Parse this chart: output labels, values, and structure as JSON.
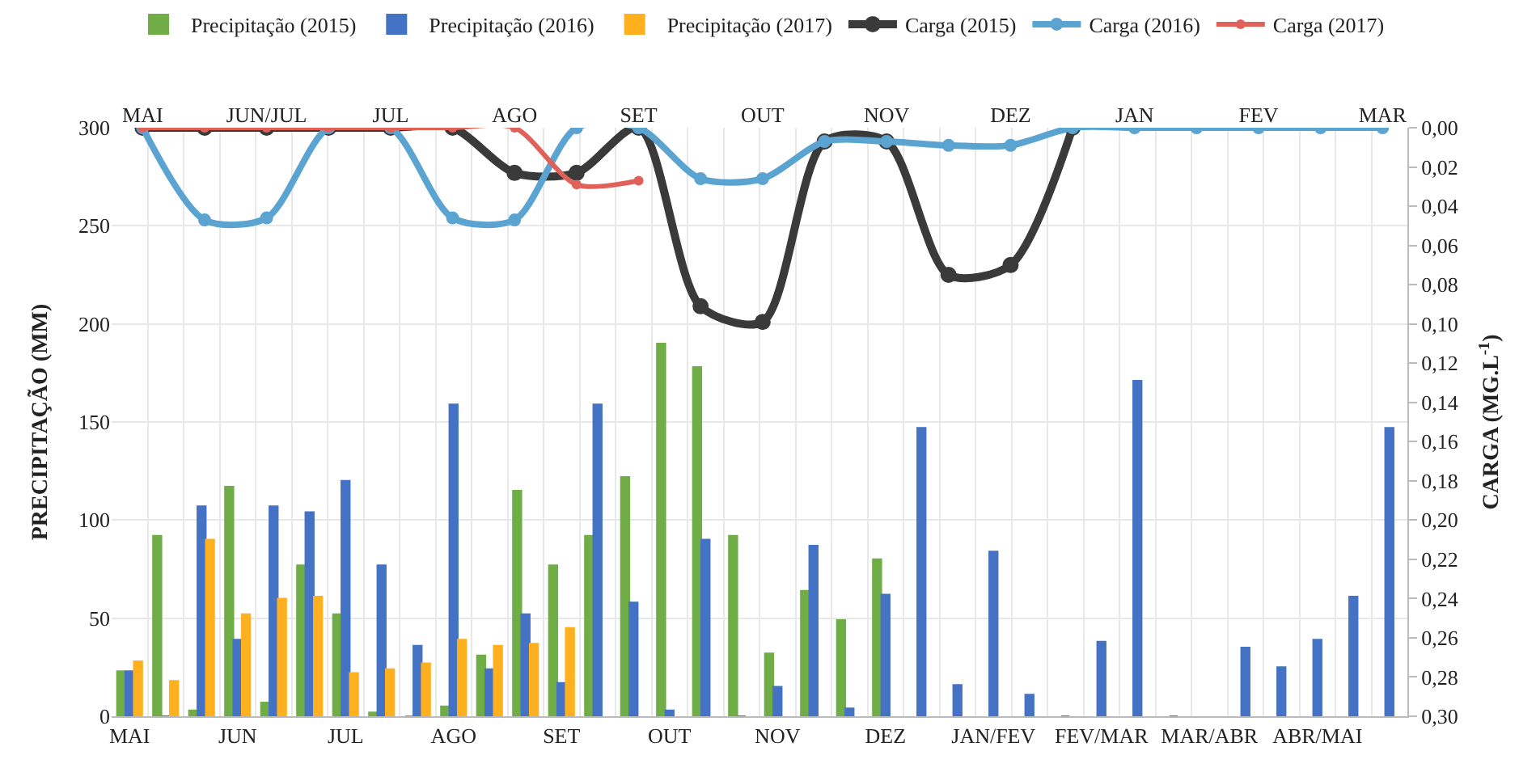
{
  "chart_data": [
    {
      "type": "bar",
      "categories": [
        "MAI",
        null,
        null,
        "JUN",
        null,
        null,
        "JUL",
        null,
        null,
        "AGO",
        null,
        null,
        "SET",
        null,
        null,
        "OUT",
        null,
        null,
        "NOV",
        null,
        null,
        "DEZ",
        null,
        null,
        "JAN/FEV",
        null,
        null,
        "FEV/MAR",
        null,
        null,
        "MAR/ABR",
        null,
        null,
        "ABR/MAI",
        null,
        null
      ],
      "ylabel": "PRECIPITAÇÃO (MM)",
      "ylim": [
        0,
        300
      ],
      "yticks": [
        0,
        50,
        100,
        150,
        200,
        250,
        300
      ],
      "grid": true,
      "legend": "top",
      "series": [
        {
          "name": "Precipitação (2015)",
          "color": "#70ad47",
          "values": [
            23,
            92,
            3,
            117,
            7,
            77,
            52,
            2,
            0,
            5,
            31,
            115,
            77,
            92,
            122,
            190,
            178,
            92,
            32,
            64,
            49,
            80,
            null,
            null,
            null,
            null,
            null,
            null,
            null,
            null,
            null,
            null,
            null,
            null,
            null,
            null
          ]
        },
        {
          "name": "Precipitação (2016)",
          "color": "#4472c4",
          "values": [
            23,
            0,
            107,
            39,
            107,
            104,
            120,
            77,
            36,
            159,
            24,
            52,
            17,
            159,
            58,
            3,
            90,
            0,
            15,
            87,
            4,
            62,
            147,
            16,
            84,
            11,
            0,
            38,
            171,
            0,
            null,
            35,
            25,
            39,
            61,
            147
          ]
        },
        {
          "name": "Precipitação (2017)",
          "color": "#ffb01f",
          "values": [
            28,
            18,
            90,
            52,
            60,
            61,
            22,
            24,
            27,
            39,
            36,
            37,
            45,
            null,
            null,
            null,
            null,
            null,
            null,
            null,
            null,
            null,
            null,
            null,
            null,
            null,
            null,
            null,
            null,
            null,
            null,
            null,
            null,
            null,
            null,
            null
          ]
        }
      ]
    },
    {
      "type": "line",
      "categories": [
        "MAI",
        null,
        "JUN/JUL",
        null,
        "JUL",
        null,
        "AGO",
        null,
        "SET",
        null,
        "OUT",
        null,
        "NOV",
        null,
        "DEZ",
        null,
        "JAN",
        null,
        "FEV",
        null,
        "MAR"
      ],
      "y2label": "CARGA (MG.L$^{-1}$)",
      "y2lim": [
        0.3,
        0.0
      ],
      "y2ticks": [
        {
          "value": 0.0,
          "label": "0,00"
        },
        {
          "value": 0.02,
          "label": "0,02"
        },
        {
          "value": 0.04,
          "label": "0,04"
        },
        {
          "value": 0.06,
          "label": "0,06"
        },
        {
          "value": 0.08,
          "label": "0,08"
        },
        {
          "value": 0.1,
          "label": "0,10"
        },
        {
          "value": 0.12,
          "label": "0,12"
        },
        {
          "value": 0.14,
          "label": "0,14"
        },
        {
          "value": 0.16,
          "label": "0,16"
        },
        {
          "value": 0.18,
          "label": "0,18"
        },
        {
          "value": 0.2,
          "label": "0,20"
        },
        {
          "value": 0.22,
          "label": "0,22"
        },
        {
          "value": 0.24,
          "label": "0,24"
        },
        {
          "value": 0.26,
          "label": "0,26"
        },
        {
          "value": 0.28,
          "label": "0,28"
        },
        {
          "value": 0.3,
          "label": "0,30"
        }
      ],
      "legend": "top",
      "marker": "circle",
      "series": [
        {
          "name": "Carga (2015)",
          "axis": "y2",
          "color": "#3a3a3a",
          "values": [
            0,
            0,
            0,
            0,
            0,
            0,
            0.023,
            0.023,
            0,
            0.091,
            0.099,
            0.007,
            0.007,
            0.075,
            0.07,
            0,
            null,
            null,
            null,
            null,
            null
          ]
        },
        {
          "name": "Carga (2016)",
          "axis": "y2",
          "color": "#5ba3d0",
          "values": [
            0,
            0.047,
            0.046,
            0,
            0,
            0.046,
            0.047,
            0,
            0,
            0.026,
            0.026,
            0.007,
            0.007,
            0.009,
            0.009,
            0,
            0,
            0,
            0,
            0,
            0
          ]
        },
        {
          "name": "Carga (2017)",
          "axis": "y2",
          "color": "#e0605a",
          "values": [
            0,
            0,
            0,
            0,
            0,
            0,
            0,
            0.029,
            0.027,
            null,
            null,
            null,
            null,
            null,
            null,
            null,
            null,
            null,
            null,
            null,
            null
          ]
        }
      ]
    }
  ]
}
